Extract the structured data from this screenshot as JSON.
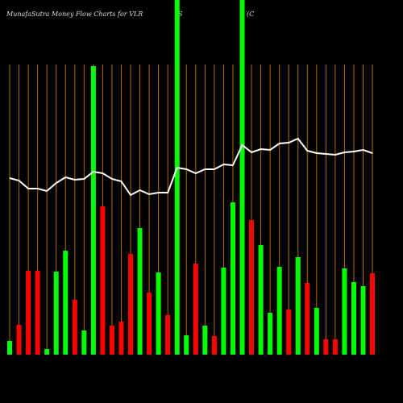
{
  "chart_data": {
    "type": "bar",
    "title": "MunafaSutra  Money Flow  Charts for VLR",
    "notes": [
      "S",
      "(C"
    ],
    "categories": [
      null,
      null,
      null,
      null,
      null,
      null,
      null,
      null,
      null,
      null,
      null,
      null,
      null,
      null,
      null,
      null,
      null,
      null,
      null,
      null,
      null,
      null,
      null,
      null,
      null,
      null,
      null,
      null,
      null,
      null,
      null,
      null,
      null,
      null,
      null,
      null,
      null,
      null,
      null,
      null
    ],
    "series": [
      {
        "name": null,
        "type": "bar",
        "colors": [
          "#00ff00",
          "#ff0000",
          "#ff0000",
          "#ff0000",
          "#00ff00",
          "#00ff00",
          "#00ff00",
          "#ff0000",
          "#00ff00",
          "#00ff00",
          "#ff0000",
          "#ff0000",
          "#ff0000",
          "#ff0000",
          "#00ff00",
          "#ff0000",
          "#00ff00",
          "#ff0000",
          "#00ff00",
          "#00ff00",
          "#ff0000",
          "#00ff00",
          "#ff0000",
          "#00ff00",
          "#00ff00",
          "#00ff00",
          "#ff0000",
          "#00ff00",
          "#00ff00",
          "#00ff00",
          "#ff0000",
          "#00ff00",
          "#ff0000",
          "#00ff00",
          "#ff0000",
          "#ff0000",
          "#00ff00",
          "#00ff00",
          "#00ff00",
          "#ff0000"
        ],
        "values": [
          17,
          37,
          104,
          104,
          7,
          103,
          129,
          68,
          30,
          358,
          184,
          36,
          41,
          125,
          157,
          77,
          102,
          49,
          460,
          24,
          113,
          36,
          23,
          108,
          189,
          460,
          167,
          136,
          52,
          109,
          56,
          121,
          89,
          58,
          19,
          19,
          107,
          90,
          85,
          101
        ]
      },
      {
        "name": null,
        "type": "line",
        "color": "#ffffff",
        "values": [
          219,
          216,
          206,
          206,
          203,
          213,
          220,
          217,
          218,
          227,
          225,
          218,
          215,
          198,
          204,
          199,
          201,
          201,
          232,
          230,
          225,
          230,
          230,
          236,
          235,
          260,
          251,
          255,
          254,
          262,
          263,
          268,
          253,
          250,
          249,
          248,
          251,
          252,
          254,
          250
        ]
      }
    ],
    "ylim": [
      0,
      440
    ]
  }
}
